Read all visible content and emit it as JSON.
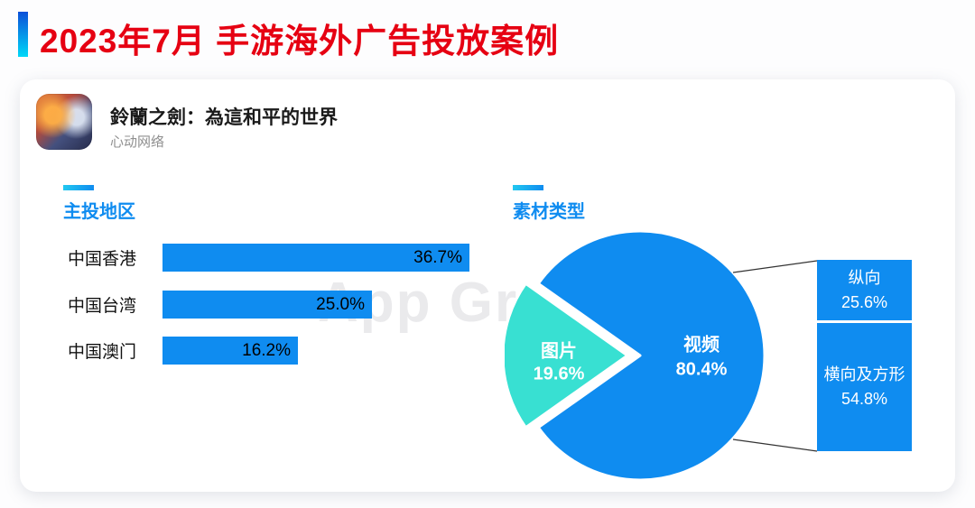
{
  "header": {
    "title": "2023年7月 手游海外广告投放案例"
  },
  "app": {
    "name": "鈴蘭之劍：為這和平的世界",
    "company": "心动网络"
  },
  "watermark": "App Gr",
  "colors": {
    "title_red": "#e60012",
    "primary_blue": "#0f8cf0",
    "cyan_slice": "#38e0d2"
  },
  "chart_data": [
    {
      "type": "bar",
      "title": "主投地区",
      "orientation": "horizontal",
      "categories": [
        "中国香港",
        "中国台湾",
        "中国澳门"
      ],
      "values": [
        36.7,
        25.0,
        16.2
      ],
      "value_labels": [
        "36.7%",
        "25.0%",
        "16.2%"
      ],
      "unit": "%",
      "xlim": [
        0,
        40
      ]
    },
    {
      "type": "pie",
      "title": "素材类型",
      "categories": [
        "视频",
        "图片"
      ],
      "values": [
        80.4,
        19.6
      ],
      "value_labels": [
        "80.4%",
        "19.6%"
      ],
      "colors": [
        "#0f8cf0",
        "#38e0d2"
      ],
      "callouts": [
        {
          "label": "纵向",
          "value": 25.6,
          "value_label": "25.6%"
        },
        {
          "label": "横向及方形",
          "value": 54.8,
          "value_label": "54.8%"
        }
      ]
    }
  ]
}
